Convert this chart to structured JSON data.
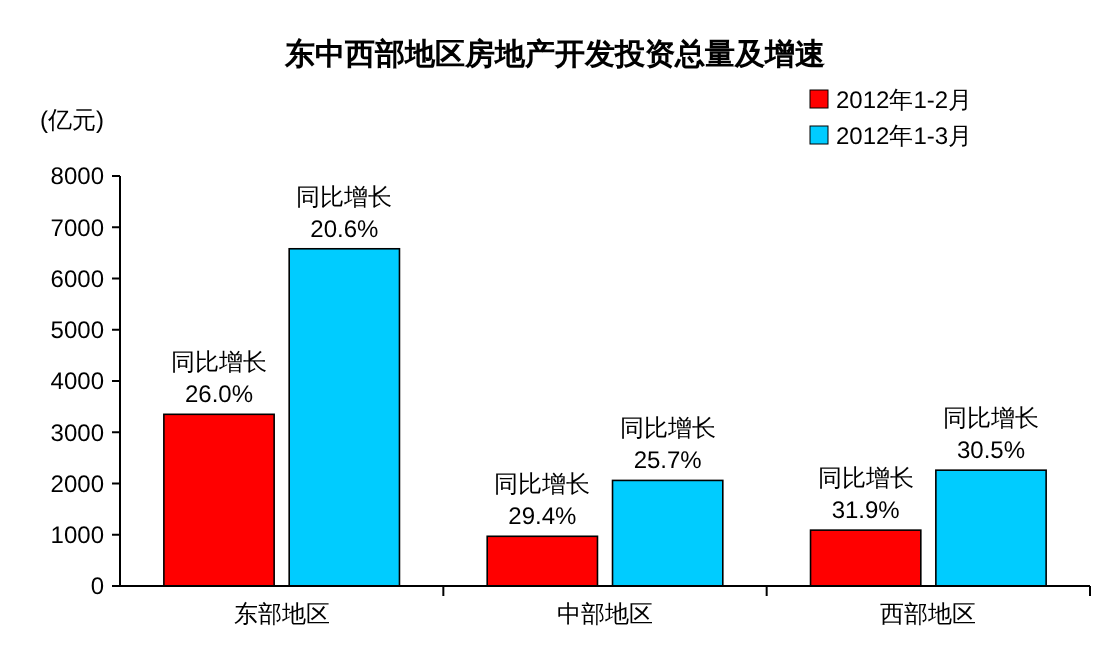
{
  "chart_data": {
    "type": "bar",
    "title": "东中西部地区房地产开发投资总量及增速",
    "ylabel": "(亿元)",
    "categories": [
      "东部地区",
      "中部地区",
      "西部地区"
    ],
    "series": [
      {
        "name": "2012年1-2月",
        "color": "#ff0000",
        "values": [
          3350,
          970,
          1090
        ],
        "value_labels": [
          "同比增长\n26.0%",
          "同比增长\n29.4%",
          "同比增长\n31.9%"
        ]
      },
      {
        "name": "2012年1-3月",
        "color": "#00ccff",
        "values": [
          6580,
          2060,
          2260
        ],
        "value_labels": [
          "同比增长\n20.6%",
          "同比增长\n25.7%",
          "同比增长\n30.5%"
        ]
      }
    ],
    "ylim": [
      0,
      8000
    ],
    "yticks": [
      0,
      1000,
      2000,
      3000,
      4000,
      5000,
      6000,
      7000,
      8000
    ],
    "grid": false,
    "legend": "top right"
  }
}
